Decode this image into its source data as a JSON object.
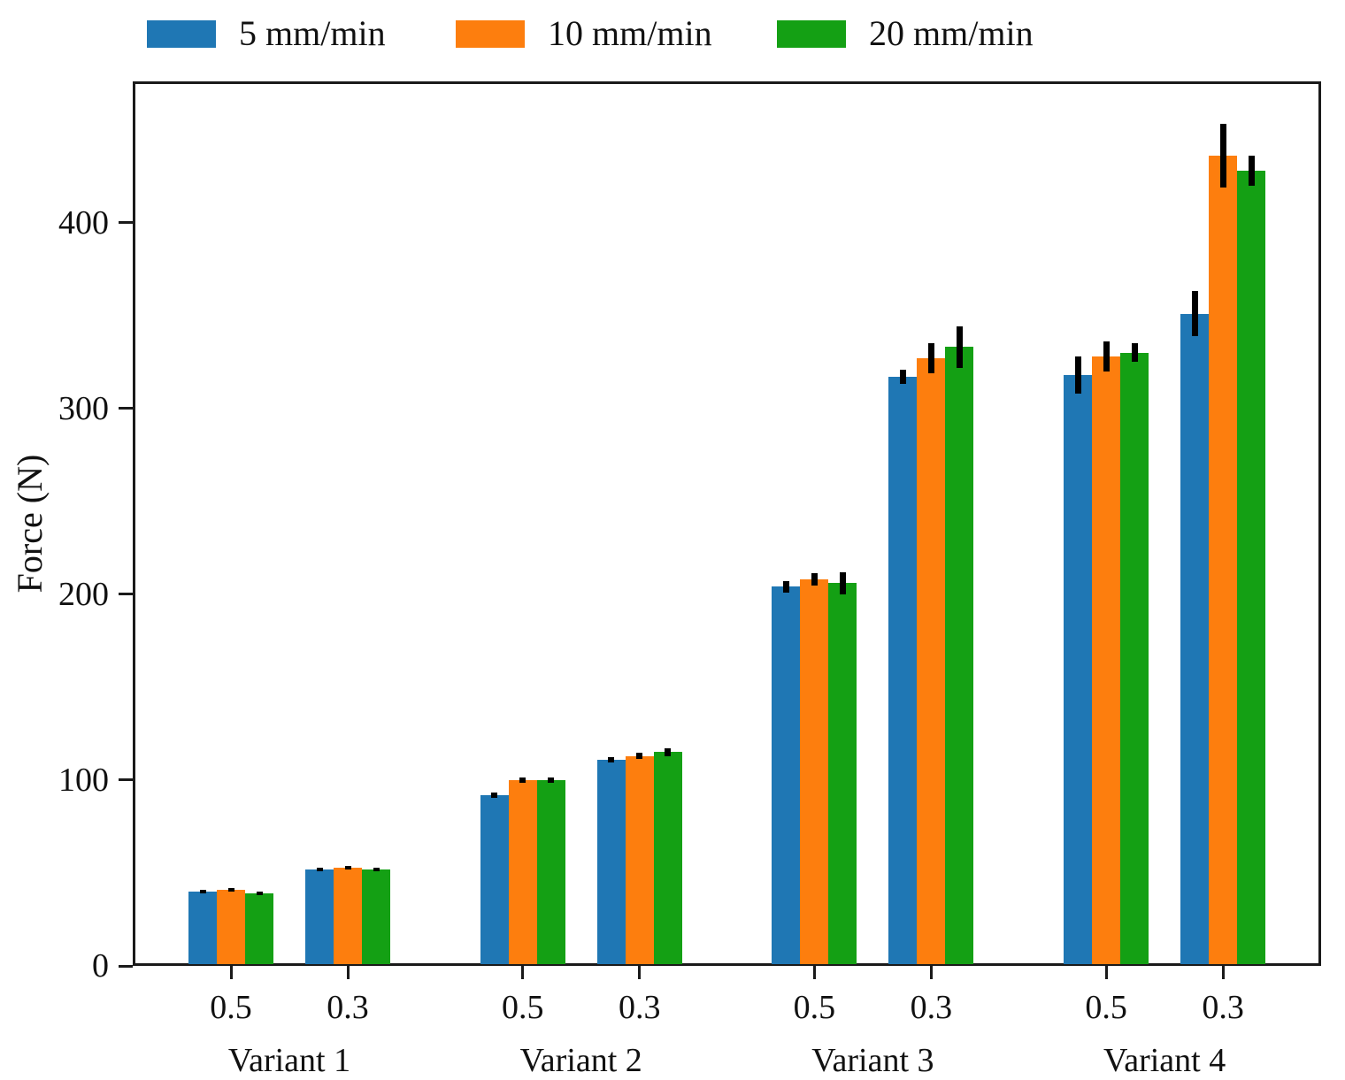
{
  "chart_data": {
    "type": "bar",
    "title": "",
    "xlabel": "",
    "ylabel": "Force (N)",
    "ylim": [
      0,
      476
    ],
    "yticks": [
      0,
      100,
      200,
      300,
      400
    ],
    "grid": false,
    "legend_position": "top-left horizontal, outside plot area",
    "error_bars": true,
    "group_labels": [
      "Variant 1",
      "Variant 2",
      "Variant 3",
      "Variant 4"
    ],
    "categories": [
      "0.5",
      "0.3",
      "0.5",
      "0.3",
      "0.5",
      "0.3",
      "0.5",
      "0.3"
    ],
    "series": [
      {
        "name": "5 mm/min",
        "color": "#1f77b4",
        "values": [
          40,
          52,
          92,
          111,
          204,
          317,
          318,
          351
        ],
        "errors": [
          1,
          1,
          1.5,
          1.5,
          3,
          4,
          10,
          12
        ]
      },
      {
        "name": "10 mm/min",
        "color": "#fd7e0e",
        "values": [
          41,
          53,
          100,
          113,
          208,
          327,
          328,
          436
        ],
        "errors": [
          1,
          1,
          1.5,
          1.5,
          3.5,
          8,
          8,
          17
        ]
      },
      {
        "name": "20 mm/min",
        "color": "#14a014",
        "values": [
          39,
          52,
          100,
          115,
          206,
          333,
          330,
          428
        ],
        "errors": [
          1,
          1,
          1.5,
          2,
          6,
          11,
          5,
          8
        ]
      }
    ]
  }
}
